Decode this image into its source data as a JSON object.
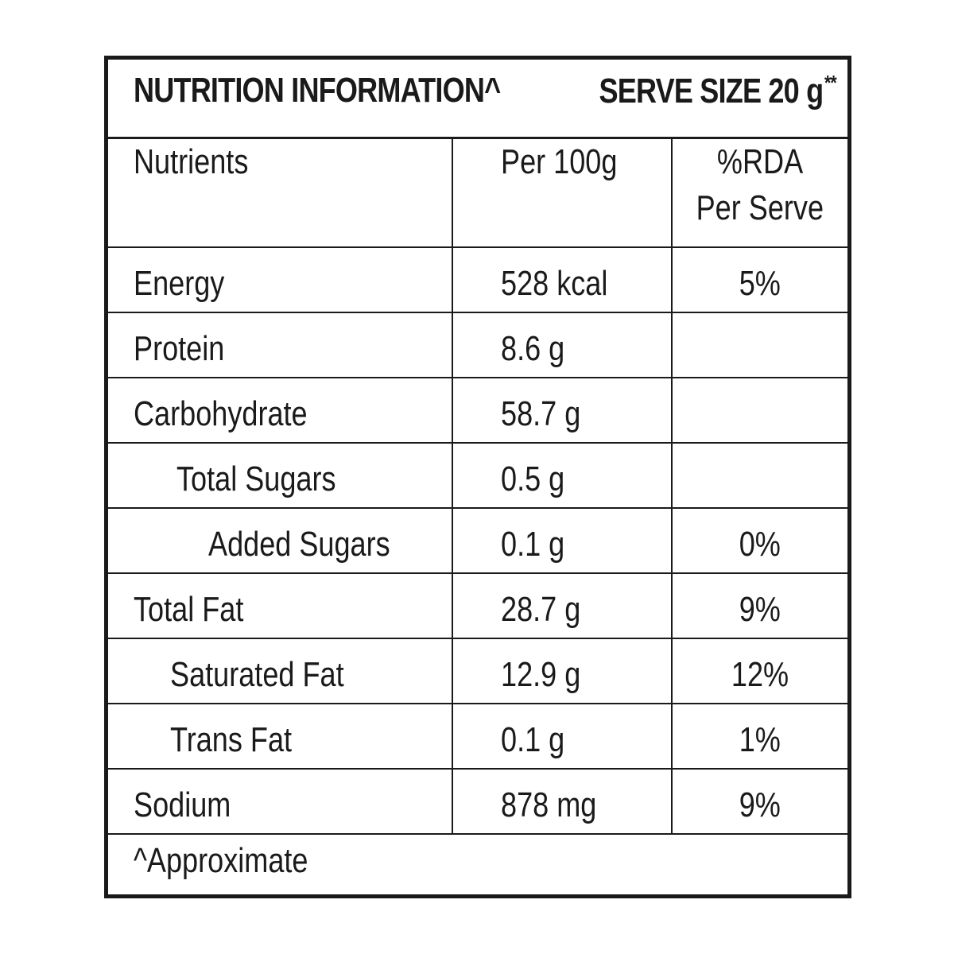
{
  "header": {
    "title": "NUTRITION INFORMATION^",
    "serve_size": "SERVE SIZE 20 g",
    "serve_size_marker": "**"
  },
  "columns": {
    "nutrients": "Nutrients",
    "per_100g": "Per 100g",
    "rda_line1": "%RDA",
    "rda_line2": "Per Serve"
  },
  "rows": [
    {
      "name": "Energy",
      "per_100g": "528 kcal",
      "rda": "5%",
      "level": 0
    },
    {
      "name": "Protein",
      "per_100g": "8.6 g",
      "rda": "",
      "level": 0
    },
    {
      "name": "Carbohydrate",
      "per_100g": "58.7 g",
      "rda": "",
      "level": 0
    },
    {
      "name": "Total Sugars",
      "per_100g": "0.5 g",
      "rda": "",
      "level": 1
    },
    {
      "name": "Added Sugars",
      "per_100g": "0.1 g",
      "rda": "0%",
      "level": 2
    },
    {
      "name": "Total Fat",
      "per_100g": "28.7 g",
      "rda": "9%",
      "level": 0
    },
    {
      "name": "Saturated Fat",
      "per_100g": "12.9 g",
      "rda": "12%",
      "level": 1
    },
    {
      "name": "Trans Fat",
      "per_100g": "0.1 g",
      "rda": "1%",
      "level": 1
    },
    {
      "name": "Sodium",
      "per_100g": "878 mg",
      "rda": "9%",
      "level": 0
    }
  ],
  "footer": {
    "note": "^Approximate"
  }
}
